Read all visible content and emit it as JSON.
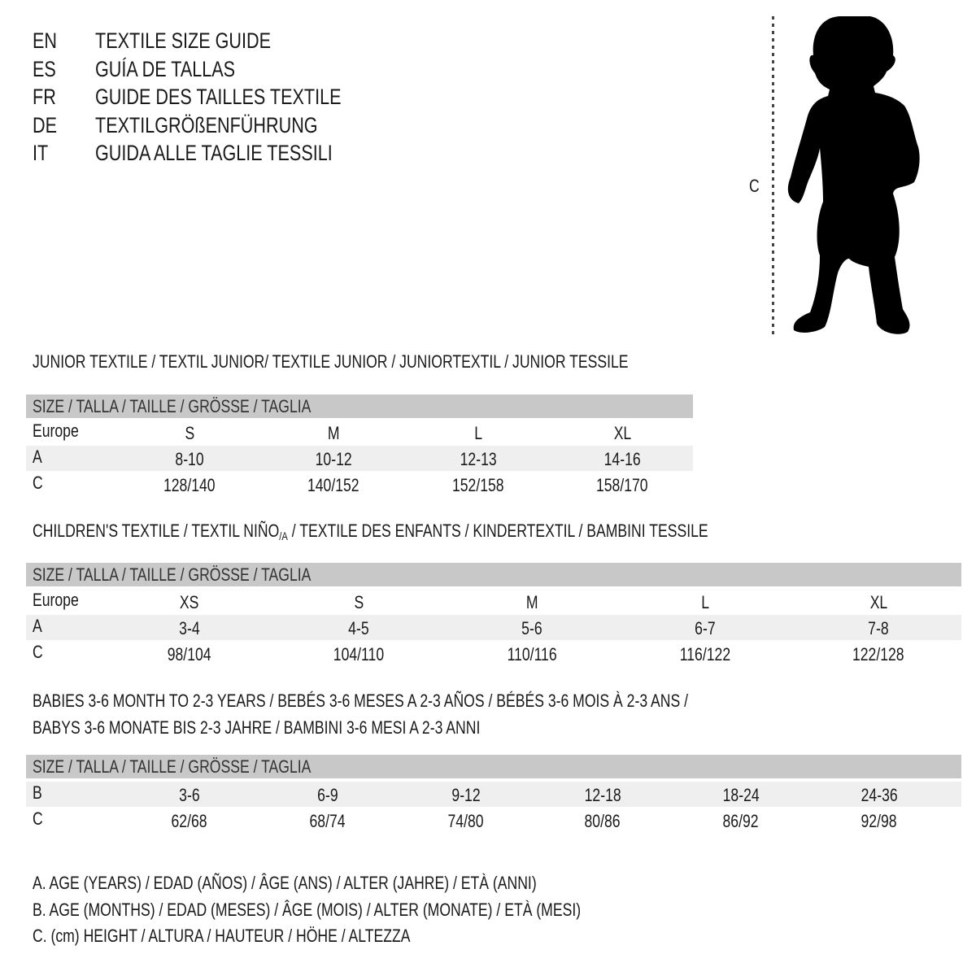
{
  "title_lines": [
    {
      "lang": "EN",
      "text": "TEXTILE SIZE GUIDE"
    },
    {
      "lang": "ES",
      "text": "GUÍA DE TALLAS"
    },
    {
      "lang": "FR",
      "text": "GUIDE DES TAILLES TEXTILE"
    },
    {
      "lang": "DE",
      "text": "TEXTILGRÖßENFÜHRUNG"
    },
    {
      "lang": "IT",
      "text": "GUIDA ALLE TAGLIE TESSILI"
    }
  ],
  "figure": {
    "height_label": "C",
    "icon": "child-silhouette-icon"
  },
  "colors": {
    "header_bar": "#c8c8c8",
    "shaded_row": "#efefef"
  },
  "junior": {
    "title": "JUNIOR TEXTILE / TEXTIL JUNIOR/ TEXTILE JUNIOR / JUNIORTEXTIL / JUNIOR TESSILE",
    "header": "SIZE / TALLA / TAILLE / GRÖSSE / TAGLIA",
    "rows": [
      {
        "label": "Europe",
        "cells": [
          "S",
          "M",
          "L",
          "XL"
        ]
      },
      {
        "label": "A",
        "cells": [
          "8-10",
          "10-12",
          "12-13",
          "14-16"
        ]
      },
      {
        "label": "C",
        "cells": [
          "128/140",
          "140/152",
          "152/158",
          "158/170"
        ]
      }
    ]
  },
  "children": {
    "title_before": "CHILDREN'S TEXTILE / TEXTIL NIÑO",
    "title_sub": "/A",
    "title_after": " / TEXTILE DES ENFANTS / KINDERTEXTIL / BAMBINI TESSILE",
    "header": "SIZE / TALLA / TAILLE / GRÖSSE / TAGLIA",
    "rows": [
      {
        "label": "Europe",
        "cells": [
          "XS",
          "S",
          "M",
          "L",
          "XL"
        ]
      },
      {
        "label": "A",
        "cells": [
          "3-4",
          "4-5",
          "5-6",
          "6-7",
          "7-8"
        ]
      },
      {
        "label": "C",
        "cells": [
          "98/104",
          "104/110",
          "110/116",
          "116/122",
          "122/128"
        ]
      }
    ]
  },
  "babies": {
    "title_line1": "BABIES 3-6 MONTH TO 2-3 YEARS / BEBÉS 3-6 MESES A 2-3 AÑOS / BÉBÉS 3-6 MOIS À 2-3 ANS /",
    "title_line2": "BABYS 3-6 MONATE BIS 2-3 JAHRE / BAMBINI 3-6 MESI A 2-3 ANNI",
    "header": "SIZE / TALLA / TAILLE / GRÖSSE / TAGLIA",
    "rows": [
      {
        "label": "B",
        "cells": [
          "3-6",
          "6-9",
          "9-12",
          "12-18",
          "18-24",
          "24-36"
        ]
      },
      {
        "label": "C",
        "cells": [
          "62/68",
          "68/74",
          "74/80",
          "80/86",
          "86/92",
          "92/98"
        ]
      }
    ]
  },
  "legend": [
    "A. AGE (YEARS) / EDAD (AÑOS) / ÂGE (ANS) / ALTER (JAHRE) / ETÀ (ANNI)",
    "B. AGE (MONTHS) / EDAD (MESES) / ÂGE (MOIS) / ALTER (MONATE) / ETÀ (MESI)",
    "C. (cm) HEIGHT / ALTURA / HAUTEUR / HÖHE / ALTEZZA"
  ]
}
